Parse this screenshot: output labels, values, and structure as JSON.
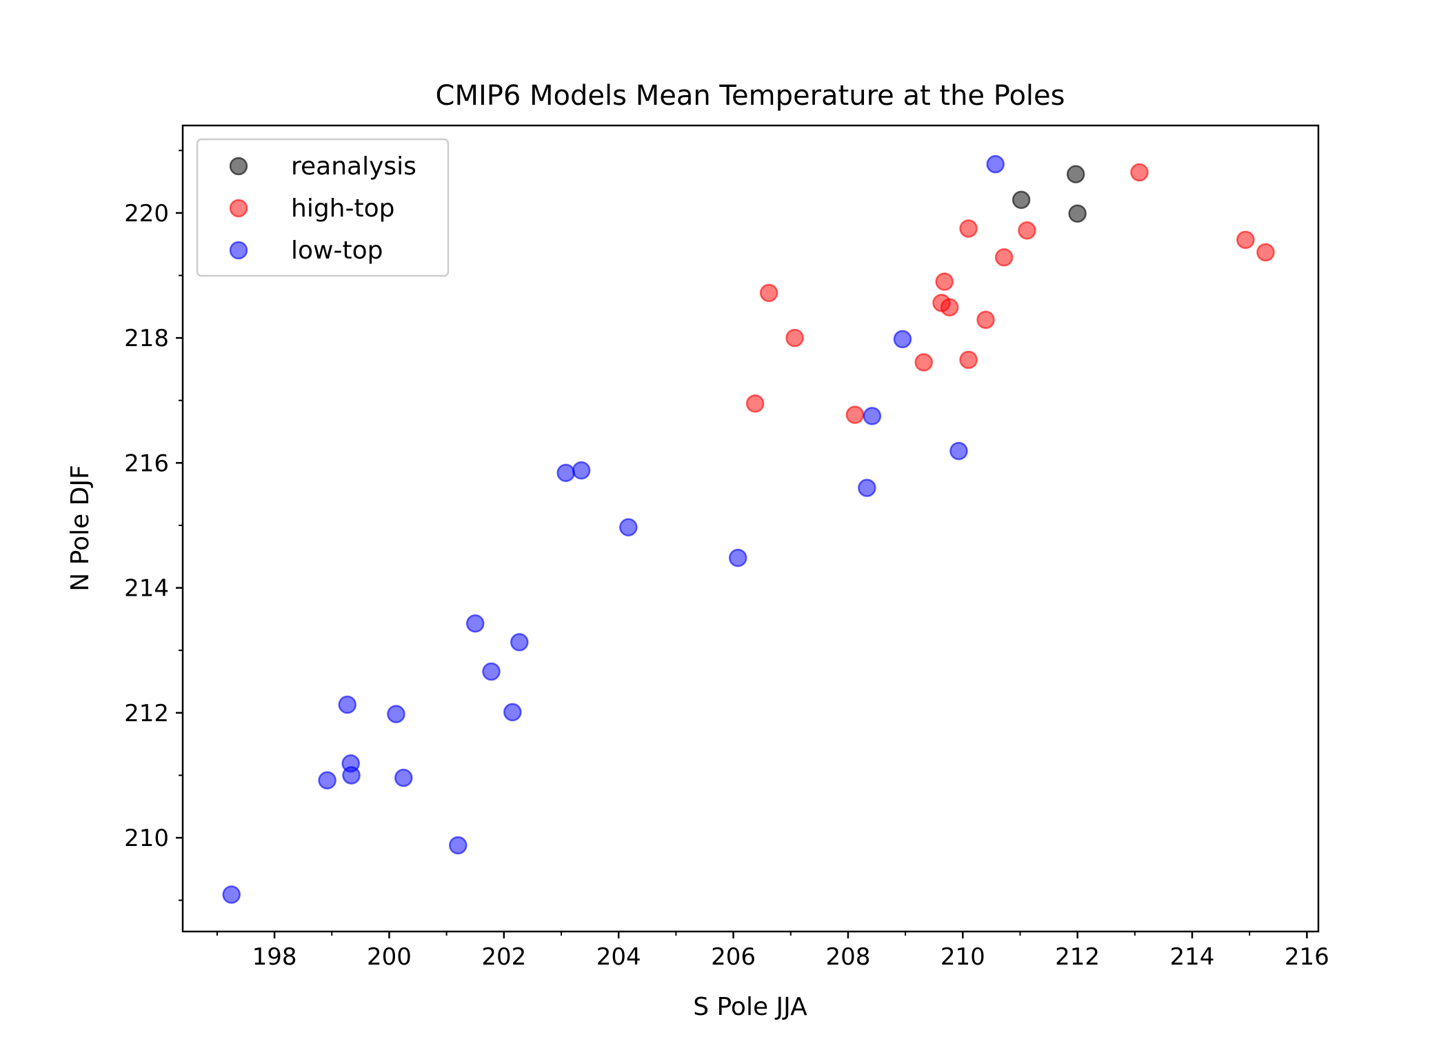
{
  "chart_data": {
    "type": "scatter",
    "title": "CMIP6 Models Mean Temperature at the Poles",
    "xlabel": "S Pole JJA",
    "ylabel": "N Pole DJF",
    "xlim": [
      196.4,
      216.2
    ],
    "ylim": [
      208.5,
      221.4
    ],
    "xticks": [
      198,
      200,
      202,
      204,
      206,
      208,
      210,
      212,
      214,
      216
    ],
    "yticks": [
      210,
      212,
      214,
      216,
      218,
      220
    ],
    "grid": false,
    "legend_position": "upper left",
    "series": [
      {
        "name": "reanalysis",
        "color": "#000000",
        "alpha": 0.5,
        "points": [
          [
            211.97,
            220.62
          ],
          [
            211.02,
            220.21
          ],
          [
            212.0,
            219.99
          ]
        ]
      },
      {
        "name": "high-top",
        "color": "#ff0000",
        "alpha": 0.5,
        "points": [
          [
            213.08,
            220.65
          ],
          [
            214.93,
            219.57
          ],
          [
            215.28,
            219.37
          ],
          [
            210.1,
            219.75
          ],
          [
            211.12,
            219.72
          ],
          [
            210.72,
            219.29
          ],
          [
            209.68,
            218.9
          ],
          [
            206.62,
            218.72
          ],
          [
            209.63,
            218.56
          ],
          [
            209.77,
            218.49
          ],
          [
            210.4,
            218.29
          ],
          [
            207.07,
            218.0
          ],
          [
            209.32,
            217.61
          ],
          [
            210.1,
            217.65
          ],
          [
            206.38,
            216.95
          ],
          [
            208.12,
            216.77
          ]
        ]
      },
      {
        "name": "low-top",
        "color": "#0000ff",
        "alpha": 0.5,
        "points": [
          [
            210.57,
            220.78
          ],
          [
            208.95,
            217.98
          ],
          [
            208.42,
            216.75
          ],
          [
            209.93,
            216.19
          ],
          [
            208.33,
            215.6
          ],
          [
            203.08,
            215.84
          ],
          [
            203.35,
            215.88
          ],
          [
            204.17,
            214.97
          ],
          [
            206.08,
            214.48
          ],
          [
            201.5,
            213.43
          ],
          [
            202.27,
            213.13
          ],
          [
            201.78,
            212.66
          ],
          [
            199.27,
            212.13
          ],
          [
            200.12,
            211.98
          ],
          [
            202.15,
            212.01
          ],
          [
            199.33,
            211.19
          ],
          [
            199.34,
            211.0
          ],
          [
            198.92,
            210.92
          ],
          [
            200.25,
            210.96
          ],
          [
            201.2,
            209.88
          ],
          [
            197.25,
            209.09
          ]
        ]
      }
    ]
  }
}
